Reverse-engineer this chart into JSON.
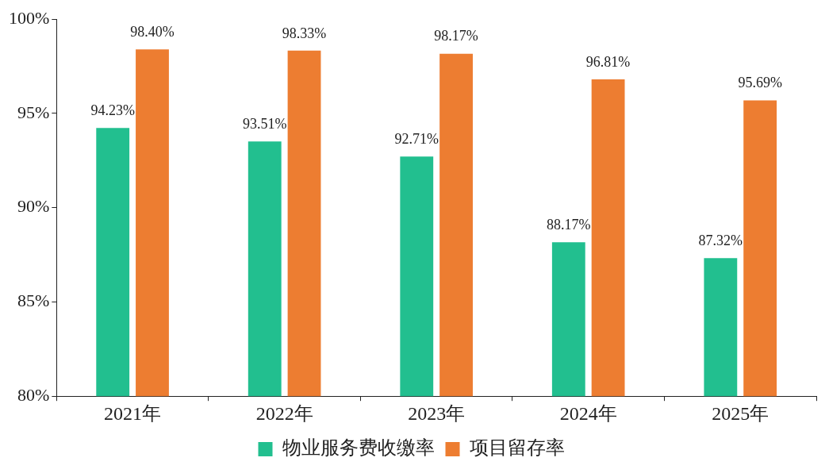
{
  "chart_data": {
    "type": "bar",
    "categories": [
      "2021年",
      "2022年",
      "2023年",
      "2024年",
      "2025年"
    ],
    "series": [
      {
        "name": "物业服务费收缴率",
        "color": "#22bf8f",
        "values": [
          94.23,
          93.51,
          92.71,
          88.17,
          87.32
        ],
        "value_labels": [
          "94.23%",
          "93.51%",
          "92.71%",
          "88.17%",
          "87.32%"
        ]
      },
      {
        "name": "项目留存率",
        "color": "#ed7d31",
        "values": [
          98.4,
          98.33,
          98.17,
          96.81,
          95.69
        ],
        "value_labels": [
          "98.40%",
          "98.33%",
          "98.17%",
          "96.81%",
          "95.69%"
        ]
      }
    ],
    "ylim": [
      80,
      100
    ],
    "yticks": [
      {
        "value": 80,
        "label": "80%"
      },
      {
        "value": 85,
        "label": "85%"
      },
      {
        "value": 90,
        "label": "90%"
      },
      {
        "value": 95,
        "label": "95%"
      },
      {
        "value": 100,
        "label": "100%"
      }
    ],
    "grid": false,
    "legend": "bottom"
  }
}
